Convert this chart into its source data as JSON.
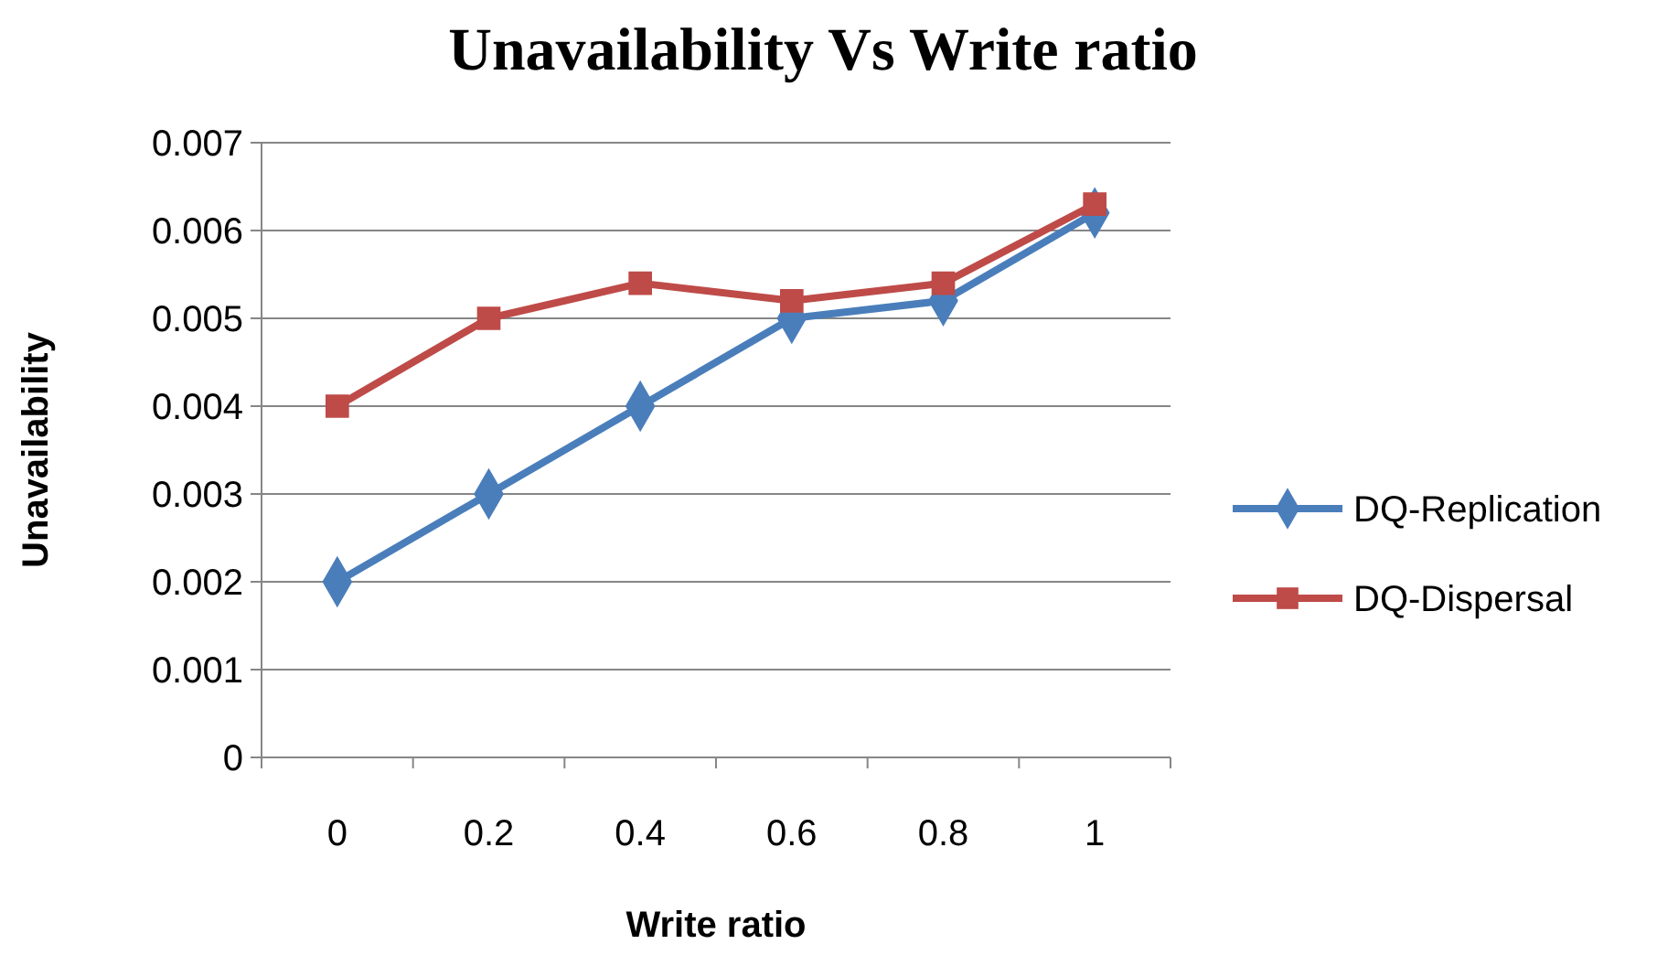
{
  "chart_data": {
    "type": "line",
    "title": "Unavailability Vs Write ratio",
    "xlabel": "Write ratio",
    "ylabel": "Unavailability",
    "categories": [
      "0",
      "0.2",
      "0.4",
      "0.6",
      "0.8",
      "1"
    ],
    "series": [
      {
        "name": "DQ-Replication",
        "color": "#4a7ebb",
        "marker": "diamond",
        "values": [
          0.002,
          0.003,
          0.004,
          0.005,
          0.0052,
          0.0062
        ]
      },
      {
        "name": "DQ-Dispersal",
        "color": "#be4b48",
        "marker": "square",
        "values": [
          0.004,
          0.005,
          0.0054,
          0.0052,
          0.0054,
          0.0063
        ]
      }
    ],
    "ylim": [
      0,
      0.007
    ],
    "yticks": [
      0,
      0.001,
      0.002,
      0.003,
      0.004,
      0.005,
      0.006,
      0.007
    ],
    "grid": "y",
    "legend": "right"
  }
}
